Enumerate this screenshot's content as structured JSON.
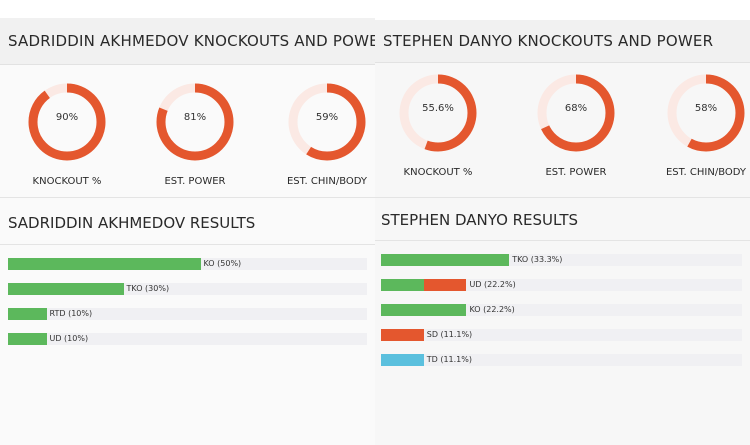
{
  "colors": {
    "green": "#5cb85c",
    "red": "#e4572e",
    "blue": "#5bc0de",
    "ring_bg": "#fbe9e4"
  },
  "left": {
    "title": "SADRIDDIN AKHMEDOV KNOCKOUTS AND POWER",
    "gauges": [
      {
        "value": 90,
        "text": "90%",
        "label": "KNOCKOUT %"
      },
      {
        "value": 81,
        "text": "81%",
        "label": "EST. POWER"
      },
      {
        "value": 59,
        "text": "59%",
        "label": "EST. CHIN/BODY"
      }
    ],
    "results_title": "SADRIDDIN AKHMEDOV RESULTS",
    "results": [
      {
        "label": "KO (50%)",
        "segments": [
          {
            "pct": 50,
            "color": "green"
          }
        ]
      },
      {
        "label": "TKO (30%)",
        "segments": [
          {
            "pct": 30,
            "color": "green"
          }
        ]
      },
      {
        "label": "RTD (10%)",
        "segments": [
          {
            "pct": 10,
            "color": "green"
          }
        ]
      },
      {
        "label": "UD (10%)",
        "segments": [
          {
            "pct": 10,
            "color": "green"
          }
        ]
      }
    ]
  },
  "right": {
    "title": "STEPHEN DANYO KNOCKOUTS AND POWER",
    "gauges": [
      {
        "value": 55.6,
        "text": "55.6%",
        "label": "KNOCKOUT %"
      },
      {
        "value": 68,
        "text": "68%",
        "label": "EST. POWER"
      },
      {
        "value": 58,
        "text": "58%",
        "label": "EST. CHIN/BODY"
      }
    ],
    "results_title": "STEPHEN DANYO RESULTS",
    "results": [
      {
        "label": "TKO (33.3%)",
        "segments": [
          {
            "pct": 33.3,
            "color": "green"
          }
        ]
      },
      {
        "label": "UD (22.2%)",
        "segments": [
          {
            "pct": 11.1,
            "color": "green"
          },
          {
            "pct": 11.1,
            "color": "red"
          }
        ]
      },
      {
        "label": "KO (22.2%)",
        "segments": [
          {
            "pct": 22.2,
            "color": "green"
          }
        ]
      },
      {
        "label": "SD (11.1%)",
        "segments": [
          {
            "pct": 11.1,
            "color": "red"
          }
        ]
      },
      {
        "label": "TD (11.1%)",
        "segments": [
          {
            "pct": 11.1,
            "color": "blue"
          }
        ]
      }
    ]
  }
}
